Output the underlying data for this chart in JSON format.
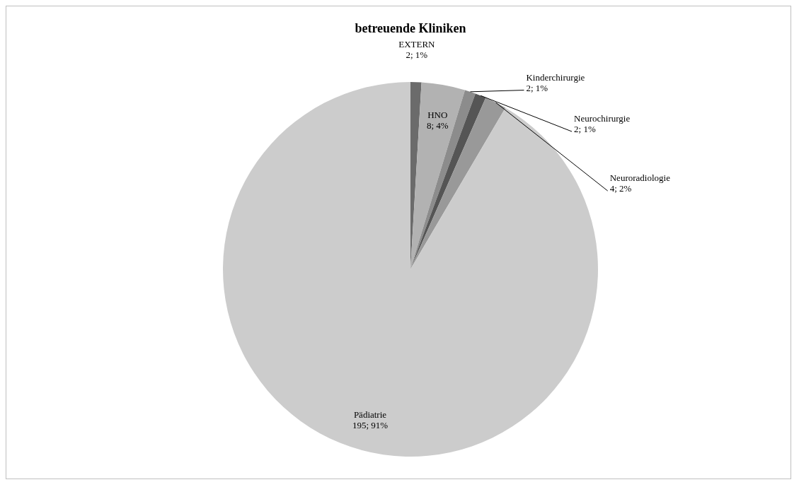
{
  "chart_data": {
    "type": "pie",
    "title": "betreuende Kliniken",
    "categories": [
      "EXTERN",
      "HNO",
      "Kinderchirurgie",
      "Neurochirurgie",
      "Neuroradiologie",
      "Pädiatrie"
    ],
    "values": [
      2,
      8,
      2,
      2,
      4,
      195
    ],
    "value_labels": [
      "2; 1%",
      "8; 4%",
      "2; 1%",
      "2; 1%",
      "4; 2%",
      "195; 91%"
    ],
    "colors": [
      "#6b6b6b",
      "#b2b2b2",
      "#8c8c8c",
      "#555555",
      "#999999",
      "#cccccc"
    ]
  }
}
